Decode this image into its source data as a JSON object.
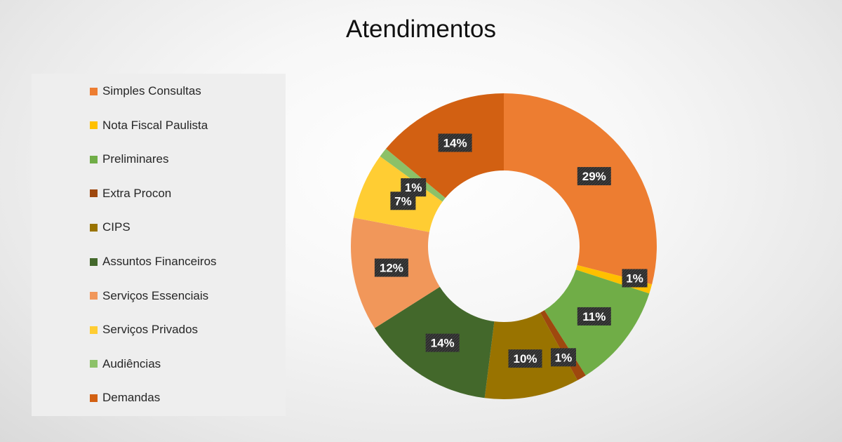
{
  "chart_data": {
    "type": "pie",
    "title": "Atendimentos",
    "legend_position": "left",
    "categories": [
      "Simples Consultas",
      "Nota Fiscal Paulista",
      "Preliminares",
      "Extra Procon",
      "CIPS",
      "Assuntos Financeiros",
      "Serviços Essenciais",
      "Serviços Privados",
      "Audiências",
      "Demandas"
    ],
    "values": [
      29,
      1,
      11,
      1,
      10,
      14,
      12,
      7,
      1,
      14
    ],
    "data_labels": [
      "29%",
      "1%",
      "11%",
      "1%",
      "10%",
      "14%",
      "12%",
      "7%",
      "1%",
      "14%"
    ],
    "colors": [
      "#ed7d31",
      "#ffc000",
      "#70ad47",
      "#9e480e",
      "#997300",
      "#43682b",
      "#f1975a",
      "#ffcd33",
      "#8cc168",
      "#d26012"
    ]
  }
}
